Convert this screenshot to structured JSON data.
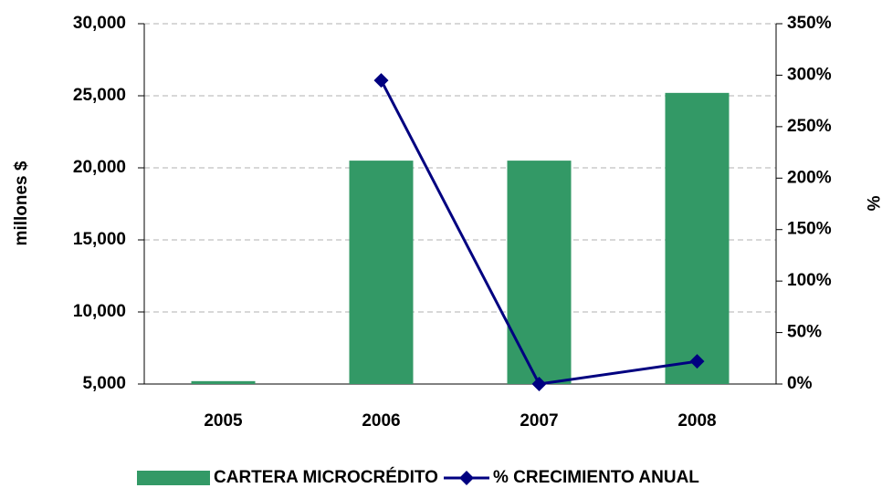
{
  "chart_data": {
    "type": "bar",
    "y_label": "millones $",
    "y2_label": "%",
    "categories": [
      "2005",
      "2006",
      "2007",
      "2008"
    ],
    "series": [
      {
        "name": "CARTERA MICROCRÉDITO",
        "type": "bar",
        "color": "#339966",
        "values": [
          5200,
          20500,
          20500,
          25200
        ]
      },
      {
        "name": "% CRECIMIENTO ANUAL",
        "type": "line",
        "axis": "y2",
        "color": "#000080",
        "values": [
          null,
          295,
          0,
          22
        ]
      }
    ],
    "ylim": [
      5000,
      30000
    ],
    "yticks": [
      {
        "value": 5000,
        "label": "5,000"
      },
      {
        "value": 10000,
        "label": "10,000"
      },
      {
        "value": 15000,
        "label": "15,000"
      },
      {
        "value": 20000,
        "label": "20,000"
      },
      {
        "value": 25000,
        "label": "25,000"
      },
      {
        "value": 30000,
        "label": "30,000"
      }
    ],
    "y2lim": [
      0,
      350
    ],
    "y2ticks": [
      {
        "value": 0,
        "label": "0%"
      },
      {
        "value": 50,
        "label": "50%"
      },
      {
        "value": 100,
        "label": "100%"
      },
      {
        "value": 150,
        "label": "150%"
      },
      {
        "value": 200,
        "label": "200%"
      },
      {
        "value": 250,
        "label": "250%"
      },
      {
        "value": 300,
        "label": "300%"
      },
      {
        "value": 350,
        "label": "350%"
      }
    ],
    "grid": true,
    "legend": "bottom"
  }
}
